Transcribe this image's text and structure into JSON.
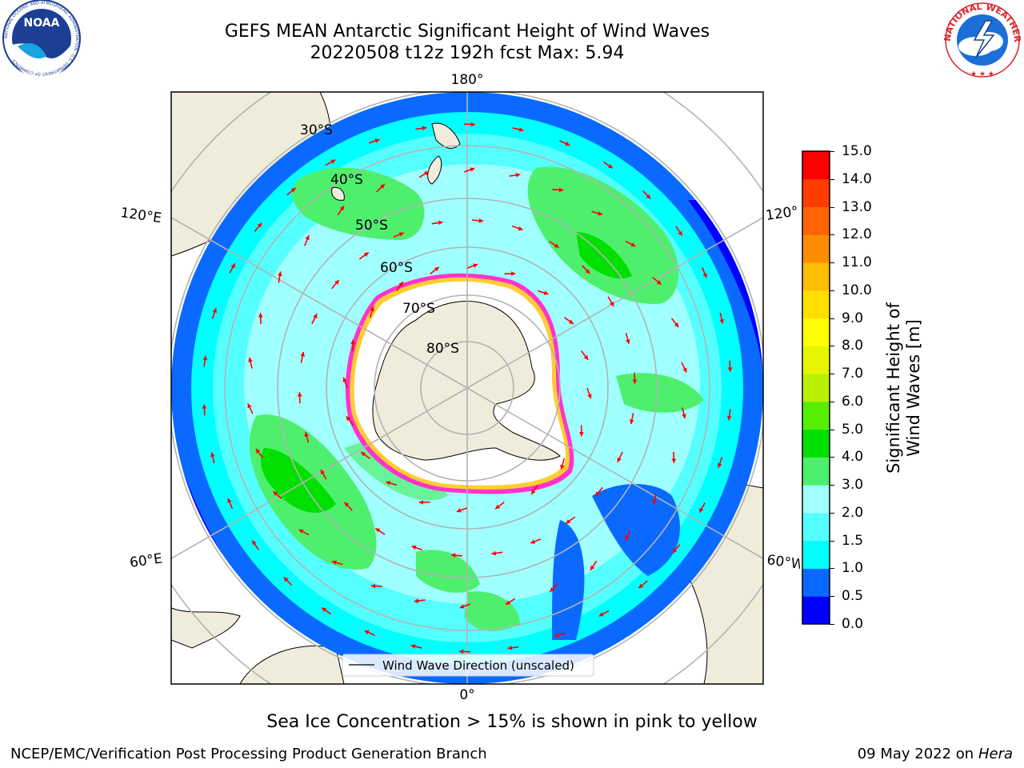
{
  "header": {
    "title_line1": "GEFS MEAN Antarctic Significant Height of Wind Waves",
    "title_line2": "20220508 t12z 192h fcst   Max: 5.94"
  },
  "logos": {
    "noaa_text": "NOAA",
    "noaa_ring_text": "NATIONAL OCEANIC AND ATMOSPHERIC ADMINISTRATION · U.S. DEPARTMENT OF COMMERCE",
    "nws_ring_text": "NATIONAL WEATHER SERVICE"
  },
  "map": {
    "projection": "south-polar-stereographic",
    "longitude_labels": {
      "top": "180°",
      "bottom": "0°",
      "upper_left": "120°E",
      "upper_right": "120°",
      "lower_left": "60°E",
      "lower_right": "60°W"
    },
    "latitude_labels": [
      "30°S",
      "40°S",
      "50°S",
      "60°S",
      "70°S",
      "80°S"
    ],
    "legend_label": "Wind Wave Direction (unscaled)",
    "arrow_color": "#ff0000",
    "land_color": "#efecdc",
    "ice_colors": [
      "#ff33cc",
      "#ffcc33"
    ]
  },
  "colorbar": {
    "title": "Significant Height of Wind Waves [m]",
    "ticks": [
      "0.0",
      "0.5",
      "1.0",
      "1.5",
      "2.0",
      "3.0",
      "4.0",
      "5.0",
      "6.0",
      "7.0",
      "8.0",
      "9.0",
      "10.0",
      "11.0",
      "12.0",
      "13.0",
      "14.0",
      "15.0"
    ],
    "colors": [
      "#0000ff",
      "#0a6aff",
      "#00ffff",
      "#55ffff",
      "#a0ffff",
      "#4fef6e",
      "#00e000",
      "#55ee00",
      "#b8f000",
      "#e6f500",
      "#ffff00",
      "#ffdf00",
      "#ffbe00",
      "#ff8c00",
      "#ff6400",
      "#ff3c00",
      "#ff0000"
    ]
  },
  "caption": "Sea Ice Concentration > 15% is shown in pink to yellow",
  "footer": {
    "left": "NCEP/EMC/Verification Post Processing Product Generation Branch",
    "right_prefix": "09 May 2022 on",
    "right_host": "Hera"
  }
}
